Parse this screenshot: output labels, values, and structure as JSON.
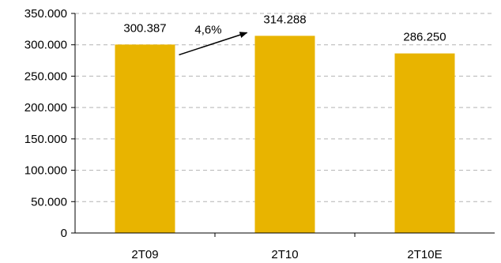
{
  "chart_data": {
    "type": "bar",
    "categories": [
      "2T09",
      "2T10",
      "2T10E"
    ],
    "values": [
      300387,
      314288,
      286250
    ],
    "data_labels": [
      "300.387",
      "314.288",
      "286.250"
    ],
    "ylim": [
      0,
      350000
    ],
    "y_ticks": [
      0,
      50000,
      100000,
      150000,
      200000,
      250000,
      300000,
      350000
    ],
    "y_tick_labels": [
      "0",
      "50.000",
      "100.000",
      "150.000",
      "200.000",
      "250.000",
      "300.000",
      "350.000"
    ],
    "grid": true,
    "bar_color": "#E8B400",
    "annotation": {
      "label": "4,6%",
      "from_category": "2T09",
      "to_category": "2T10"
    }
  }
}
